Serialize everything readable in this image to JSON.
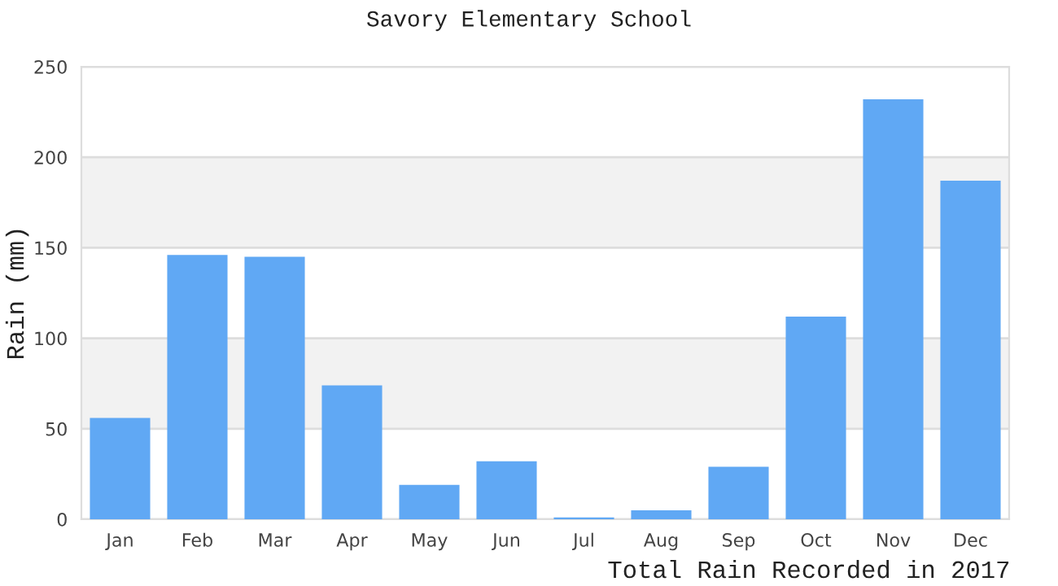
{
  "chart_data": {
    "type": "bar",
    "title": "Savory Elementary School",
    "ylabel": "Rain (mm)",
    "annotations": [
      "Total Rain Recorded in 2017"
    ],
    "categories": [
      "Jan",
      "Feb",
      "Mar",
      "Apr",
      "May",
      "Jun",
      "Jul",
      "Aug",
      "Sep",
      "Oct",
      "Nov",
      "Dec"
    ],
    "values": [
      56,
      146,
      145,
      74,
      19,
      32,
      1,
      5,
      29,
      112,
      232,
      187
    ],
    "color": "#60a8f4",
    "ylim": [
      0,
      250
    ],
    "yticks": [
      0,
      50,
      100,
      150,
      200,
      250
    ],
    "grid": "y",
    "bands": [
      {
        "axis": "y",
        "from": 50,
        "to": 100,
        "color": "#f2f2f2"
      },
      {
        "axis": "y",
        "from": 150,
        "to": 200,
        "color": "#f2f2f2"
      }
    ]
  }
}
